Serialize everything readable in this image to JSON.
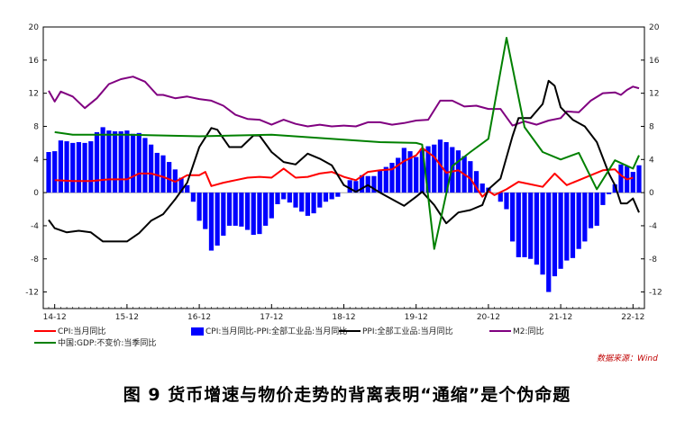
{
  "caption": "图 9   货币增速与物价走势的背离表明“通缩”是个伪命题",
  "source": "数据来源：Wind",
  "chart_data": {
    "type": "bar+line",
    "left_axis": {
      "ylim": [
        -14,
        20
      ],
      "ticks": [
        "20",
        "16",
        "12",
        "8",
        "4",
        "0",
        "-4",
        "-8",
        "-12"
      ]
    },
    "right_axis": {
      "ylim": [
        -14,
        20
      ],
      "ticks": [
        "20",
        "16",
        "12",
        "8",
        "4",
        "0",
        "-4",
        "-8",
        "-12"
      ]
    },
    "x_tick_labels": [
      "14-12",
      "15-12",
      "16-12",
      "17-12",
      "18-12",
      "19-12",
      "20-12",
      "21-12",
      "22-12"
    ],
    "x_range_months": [
      "2014-11",
      "2023-01"
    ],
    "grid": false,
    "legend_placement": "bottom",
    "series": [
      {
        "name": "CPI:当月同比",
        "type": "line",
        "color": "#ff0000",
        "points": [
          [
            "2014-12",
            1.5
          ],
          [
            "2015-03",
            1.4
          ],
          [
            "2015-06",
            1.4
          ],
          [
            "2015-09",
            1.6
          ],
          [
            "2015-12",
            1.6
          ],
          [
            "2016-02",
            2.3
          ],
          [
            "2016-04",
            2.3
          ],
          [
            "2016-06",
            1.9
          ],
          [
            "2016-08",
            1.3
          ],
          [
            "2016-10",
            2.1
          ],
          [
            "2016-12",
            2.1
          ],
          [
            "2017-01",
            2.5
          ],
          [
            "2017-02",
            0.8
          ],
          [
            "2017-04",
            1.2
          ],
          [
            "2017-06",
            1.5
          ],
          [
            "2017-08",
            1.8
          ],
          [
            "2017-10",
            1.9
          ],
          [
            "2017-12",
            1.8
          ],
          [
            "2018-02",
            2.9
          ],
          [
            "2018-04",
            1.8
          ],
          [
            "2018-06",
            1.9
          ],
          [
            "2018-08",
            2.3
          ],
          [
            "2018-10",
            2.5
          ],
          [
            "2018-12",
            1.9
          ],
          [
            "2019-02",
            1.5
          ],
          [
            "2019-04",
            2.5
          ],
          [
            "2019-06",
            2.7
          ],
          [
            "2019-08",
            2.8
          ],
          [
            "2019-10",
            3.8
          ],
          [
            "2019-12",
            4.5
          ],
          [
            "2020-01",
            5.4
          ],
          [
            "2020-03",
            4.3
          ],
          [
            "2020-05",
            2.4
          ],
          [
            "2020-07",
            2.7
          ],
          [
            "2020-09",
            1.7
          ],
          [
            "2020-11",
            -0.5
          ],
          [
            "2020-12",
            0.2
          ],
          [
            "2021-01",
            -0.3
          ],
          [
            "2021-03",
            0.4
          ],
          [
            "2021-05",
            1.3
          ],
          [
            "2021-07",
            1.0
          ],
          [
            "2021-09",
            0.7
          ],
          [
            "2021-11",
            2.3
          ],
          [
            "2022-01",
            0.9
          ],
          [
            "2022-03",
            1.5
          ],
          [
            "2022-05",
            2.1
          ],
          [
            "2022-07",
            2.7
          ],
          [
            "2022-09",
            2.8
          ],
          [
            "2022-10",
            2.1
          ],
          [
            "2022-11",
            1.6
          ],
          [
            "2022-12",
            1.8
          ]
        ]
      },
      {
        "name": "CPI:当月同比-PPI:全部工业品:当月同比",
        "type": "bar",
        "color": "#0000ff",
        "points": [
          [
            "2014-11",
            4.9
          ],
          [
            "2014-12",
            5.0
          ],
          [
            "2015-01",
            6.3
          ],
          [
            "2015-02",
            6.2
          ],
          [
            "2015-03",
            6.0
          ],
          [
            "2015-04",
            6.1
          ],
          [
            "2015-05",
            6.0
          ],
          [
            "2015-06",
            6.2
          ],
          [
            "2015-07",
            7.3
          ],
          [
            "2015-08",
            7.9
          ],
          [
            "2015-09",
            7.5
          ],
          [
            "2015-10",
            7.4
          ],
          [
            "2015-11",
            7.4
          ],
          [
            "2015-12",
            7.5
          ],
          [
            "2016-01",
            7.1
          ],
          [
            "2016-02",
            7.2
          ],
          [
            "2016-03",
            6.6
          ],
          [
            "2016-04",
            5.8
          ],
          [
            "2016-05",
            4.8
          ],
          [
            "2016-06",
            4.5
          ],
          [
            "2016-07",
            3.7
          ],
          [
            "2016-08",
            2.8
          ],
          [
            "2016-09",
            1.8
          ],
          [
            "2016-10",
            0.9
          ],
          [
            "2016-11",
            -1.1
          ],
          [
            "2016-12",
            -3.4
          ],
          [
            "2017-01",
            -4.4
          ],
          [
            "2017-02",
            -7.0
          ],
          [
            "2017-03",
            -6.4
          ],
          [
            "2017-04",
            -5.2
          ],
          [
            "2017-05",
            -4.0
          ],
          [
            "2017-06",
            -4.0
          ],
          [
            "2017-07",
            -4.1
          ],
          [
            "2017-08",
            -4.5
          ],
          [
            "2017-09",
            -5.1
          ],
          [
            "2017-10",
            -5.0
          ],
          [
            "2017-11",
            -4.0
          ],
          [
            "2017-12",
            -3.1
          ],
          [
            "2018-01",
            -1.4
          ],
          [
            "2018-02",
            -0.8
          ],
          [
            "2018-03",
            -1.2
          ],
          [
            "2018-04",
            -1.8
          ],
          [
            "2018-05",
            -2.3
          ],
          [
            "2018-06",
            -2.8
          ],
          [
            "2018-07",
            -2.5
          ],
          [
            "2018-08",
            -1.8
          ],
          [
            "2018-09",
            -1.1
          ],
          [
            "2018-10",
            -0.8
          ],
          [
            "2018-11",
            -0.5
          ],
          [
            "2018-12",
            0.0
          ],
          [
            "2019-01",
            1.5
          ],
          [
            "2019-02",
            1.4
          ],
          [
            "2019-03",
            2.1
          ],
          [
            "2019-04",
            2.0
          ],
          [
            "2019-05",
            2.0
          ],
          [
            "2019-06",
            2.7
          ],
          [
            "2019-07",
            3.1
          ],
          [
            "2019-08",
            3.6
          ],
          [
            "2019-09",
            4.2
          ],
          [
            "2019-10",
            5.4
          ],
          [
            "2019-11",
            5.0
          ],
          [
            "2019-12",
            4.3
          ],
          [
            "2020-01",
            5.3
          ],
          [
            "2020-02",
            5.6
          ],
          [
            "2020-03",
            5.8
          ],
          [
            "2020-04",
            6.4
          ],
          [
            "2020-05",
            6.1
          ],
          [
            "2020-06",
            5.5
          ],
          [
            "2020-07",
            5.1
          ],
          [
            "2020-08",
            4.4
          ],
          [
            "2020-09",
            3.8
          ],
          [
            "2020-10",
            2.6
          ],
          [
            "2020-11",
            1.1
          ],
          [
            "2020-12",
            0.6
          ],
          [
            "2021-01",
            0.0
          ],
          [
            "2021-02",
            -1.1
          ],
          [
            "2021-03",
            -2.0
          ],
          [
            "2021-04",
            -5.9
          ],
          [
            "2021-05",
            -7.8
          ],
          [
            "2021-06",
            -7.8
          ],
          [
            "2021-07",
            -8.0
          ],
          [
            "2021-08",
            -8.7
          ],
          [
            "2021-09",
            -9.9
          ],
          [
            "2021-10",
            -12.0
          ],
          [
            "2021-11",
            -10.1
          ],
          [
            "2021-12",
            -9.2
          ],
          [
            "2022-01",
            -8.2
          ],
          [
            "2022-02",
            -7.9
          ],
          [
            "2022-03",
            -6.8
          ],
          [
            "2022-04",
            -5.9
          ],
          [
            "2022-05",
            -4.3
          ],
          [
            "2022-06",
            -4.0
          ],
          [
            "2022-07",
            -1.5
          ],
          [
            "2022-08",
            -0.2
          ],
          [
            "2022-09",
            1.0
          ],
          [
            "2022-10",
            3.4
          ],
          [
            "2022-11",
            3.2
          ],
          [
            "2022-12",
            2.5
          ],
          [
            "2023-01",
            3.3
          ]
        ]
      },
      {
        "name": "PPI:全部工业品:当月同比",
        "type": "line",
        "color": "#000000",
        "points": [
          [
            "2014-11",
            -3.3
          ],
          [
            "2014-12",
            -4.3
          ],
          [
            "2015-02",
            -4.8
          ],
          [
            "2015-04",
            -4.6
          ],
          [
            "2015-06",
            -4.8
          ],
          [
            "2015-08",
            -5.9
          ],
          [
            "2015-10",
            -5.9
          ],
          [
            "2015-12",
            -5.9
          ],
          [
            "2016-02",
            -4.9
          ],
          [
            "2016-04",
            -3.4
          ],
          [
            "2016-06",
            -2.6
          ],
          [
            "2016-08",
            -0.8
          ],
          [
            "2016-10",
            1.2
          ],
          [
            "2016-12",
            5.5
          ],
          [
            "2017-02",
            7.8
          ],
          [
            "2017-03",
            7.6
          ],
          [
            "2017-05",
            5.5
          ],
          [
            "2017-07",
            5.5
          ],
          [
            "2017-09",
            6.9
          ],
          [
            "2017-10",
            6.9
          ],
          [
            "2017-12",
            4.9
          ],
          [
            "2018-02",
            3.7
          ],
          [
            "2018-04",
            3.4
          ],
          [
            "2018-06",
            4.7
          ],
          [
            "2018-08",
            4.1
          ],
          [
            "2018-10",
            3.3
          ],
          [
            "2018-12",
            0.9
          ],
          [
            "2019-02",
            0.1
          ],
          [
            "2019-04",
            0.9
          ],
          [
            "2019-06",
            0.0
          ],
          [
            "2019-08",
            -0.8
          ],
          [
            "2019-10",
            -1.6
          ],
          [
            "2019-12",
            -0.5
          ],
          [
            "2020-01",
            0.1
          ],
          [
            "2020-03",
            -1.5
          ],
          [
            "2020-05",
            -3.7
          ],
          [
            "2020-07",
            -2.4
          ],
          [
            "2020-09",
            -2.1
          ],
          [
            "2020-11",
            -1.5
          ],
          [
            "2020-12",
            0.4
          ],
          [
            "2021-02",
            1.7
          ],
          [
            "2021-04",
            6.8
          ],
          [
            "2021-05",
            9.0
          ],
          [
            "2021-07",
            9.0
          ],
          [
            "2021-09",
            10.7
          ],
          [
            "2021-10",
            13.5
          ],
          [
            "2021-11",
            12.9
          ],
          [
            "2021-12",
            10.3
          ],
          [
            "2022-02",
            8.8
          ],
          [
            "2022-04",
            8.0
          ],
          [
            "2022-06",
            6.1
          ],
          [
            "2022-08",
            2.3
          ],
          [
            "2022-09",
            0.9
          ],
          [
            "2022-10",
            -1.3
          ],
          [
            "2022-11",
            -1.3
          ],
          [
            "2022-12",
            -0.7
          ],
          [
            "2023-01",
            -2.4
          ]
        ]
      },
      {
        "name": "M2:同比",
        "type": "line",
        "color": "#800080",
        "points": [
          [
            "2014-11",
            12.3
          ],
          [
            "2014-12",
            11.0
          ],
          [
            "2015-01",
            12.2
          ],
          [
            "2015-03",
            11.6
          ],
          [
            "2015-05",
            10.2
          ],
          [
            "2015-07",
            11.4
          ],
          [
            "2015-09",
            13.1
          ],
          [
            "2015-11",
            13.7
          ],
          [
            "2016-01",
            14.0
          ],
          [
            "2016-03",
            13.4
          ],
          [
            "2016-05",
            11.8
          ],
          [
            "2016-06",
            11.8
          ],
          [
            "2016-08",
            11.4
          ],
          [
            "2016-10",
            11.6
          ],
          [
            "2016-12",
            11.3
          ],
          [
            "2017-02",
            11.1
          ],
          [
            "2017-04",
            10.5
          ],
          [
            "2017-06",
            9.4
          ],
          [
            "2017-08",
            8.9
          ],
          [
            "2017-10",
            8.8
          ],
          [
            "2017-12",
            8.2
          ],
          [
            "2018-02",
            8.8
          ],
          [
            "2018-04",
            8.3
          ],
          [
            "2018-06",
            8.0
          ],
          [
            "2018-08",
            8.2
          ],
          [
            "2018-10",
            8.0
          ],
          [
            "2018-12",
            8.1
          ],
          [
            "2019-02",
            8.0
          ],
          [
            "2019-04",
            8.5
          ],
          [
            "2019-06",
            8.5
          ],
          [
            "2019-08",
            8.2
          ],
          [
            "2019-10",
            8.4
          ],
          [
            "2019-12",
            8.7
          ],
          [
            "2020-02",
            8.8
          ],
          [
            "2020-04",
            11.1
          ],
          [
            "2020-06",
            11.1
          ],
          [
            "2020-08",
            10.4
          ],
          [
            "2020-10",
            10.5
          ],
          [
            "2020-12",
            10.1
          ],
          [
            "2021-02",
            10.1
          ],
          [
            "2021-04",
            8.1
          ],
          [
            "2021-06",
            8.6
          ],
          [
            "2021-08",
            8.2
          ],
          [
            "2021-10",
            8.7
          ],
          [
            "2021-12",
            9.0
          ],
          [
            "2022-01",
            9.8
          ],
          [
            "2022-03",
            9.7
          ],
          [
            "2022-05",
            11.1
          ],
          [
            "2022-07",
            12.0
          ],
          [
            "2022-09",
            12.1
          ],
          [
            "2022-10",
            11.8
          ],
          [
            "2022-11",
            12.4
          ],
          [
            "2022-12",
            12.8
          ],
          [
            "2023-01",
            12.6
          ]
        ]
      },
      {
        "name": "中国:GDP:不变价:当季同比",
        "type": "line",
        "color": "#008000",
        "points": [
          [
            "2014-12",
            7.3
          ],
          [
            "2015-03",
            7.0
          ],
          [
            "2015-12",
            7.0
          ],
          [
            "2016-12",
            6.8
          ],
          [
            "2017-12",
            7.0
          ],
          [
            "2018-12",
            6.4
          ],
          [
            "2019-06",
            6.1
          ],
          [
            "2019-12",
            6.0
          ],
          [
            "2020-01",
            5.8
          ],
          [
            "2020-03",
            -6.8
          ],
          [
            "2020-06",
            3.2
          ],
          [
            "2020-09",
            4.9
          ],
          [
            "2020-12",
            6.5
          ],
          [
            "2021-03",
            18.7
          ],
          [
            "2021-06",
            7.9
          ],
          [
            "2021-09",
            4.9
          ],
          [
            "2021-12",
            4.0
          ],
          [
            "2022-03",
            4.8
          ],
          [
            "2022-06",
            0.4
          ],
          [
            "2022-09",
            3.9
          ],
          [
            "2022-12",
            2.9
          ],
          [
            "2023-01",
            4.5
          ]
        ]
      }
    ]
  }
}
